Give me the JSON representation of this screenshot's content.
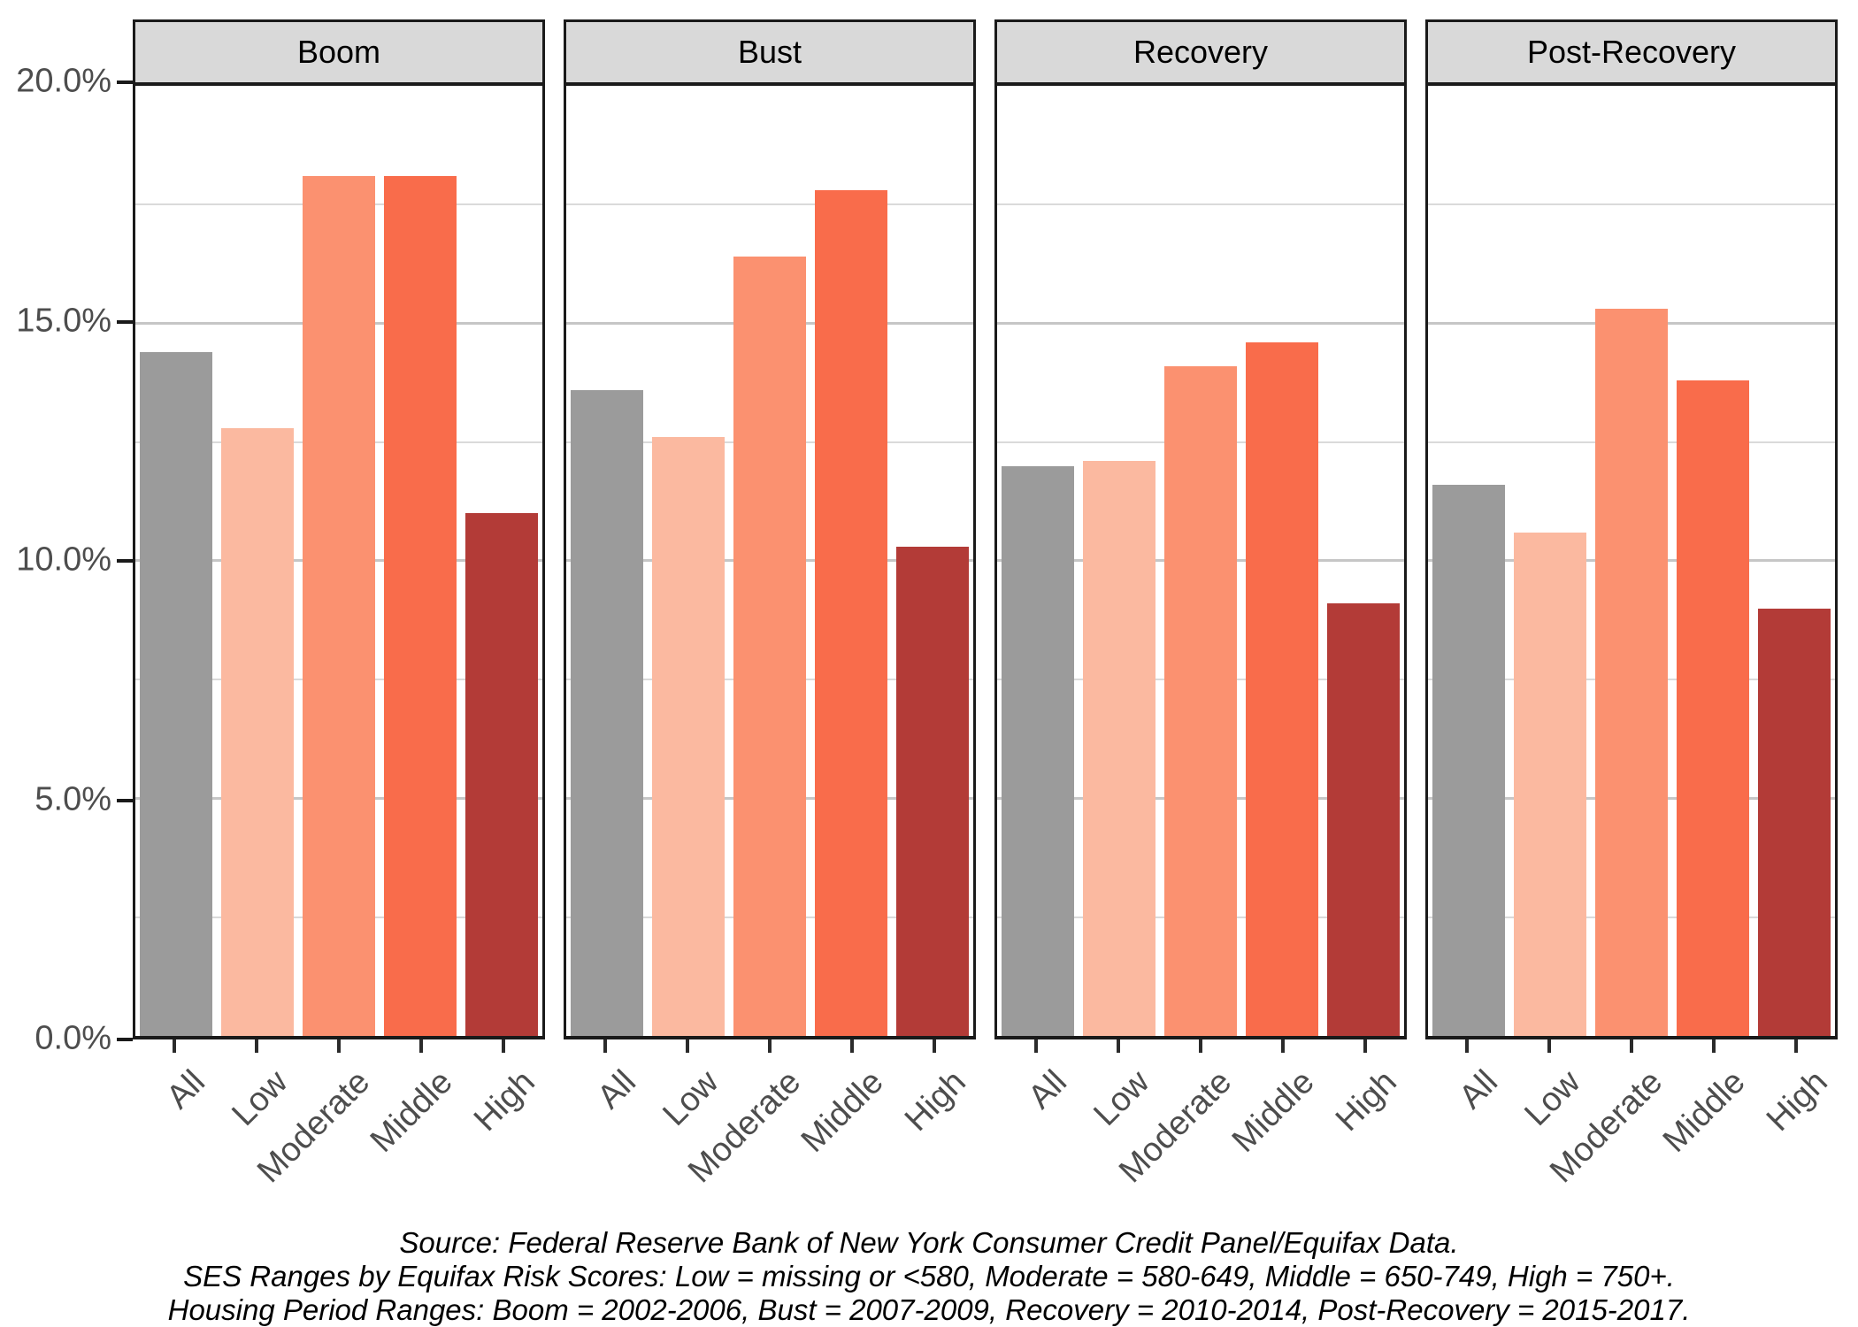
{
  "chart_data": {
    "type": "bar",
    "title": "",
    "facets": [
      "Boom",
      "Bust",
      "Recovery",
      "Post-Recovery"
    ],
    "categories": [
      "All",
      "Low",
      "Moderate",
      "Middle",
      "High"
    ],
    "series": [
      {
        "facet": "Boom",
        "values": [
          14.4,
          12.8,
          18.1,
          18.1,
          11.0
        ]
      },
      {
        "facet": "Bust",
        "values": [
          13.6,
          12.6,
          16.4,
          17.8,
          10.3
        ]
      },
      {
        "facet": "Recovery",
        "values": [
          12.0,
          12.1,
          14.1,
          14.6,
          9.1
        ]
      },
      {
        "facet": "Post-Recovery",
        "values": [
          11.6,
          10.6,
          15.3,
          13.8,
          9.0
        ]
      }
    ],
    "value_unit": "percent",
    "ylim": [
      0,
      20
    ],
    "y_major_ticks": [
      20,
      15,
      10,
      5,
      0
    ],
    "y_tick_labels": [
      "20.0%",
      "15.0%",
      "10.0%",
      "5.0%",
      "0.0%"
    ],
    "y_minor_gridlines": [
      17.5,
      12.5,
      7.5,
      2.5
    ],
    "bar_colors": {
      "All": "#9B9B9B",
      "Low": "#FBB9A0",
      "Moderate": "#FB9170",
      "Middle": "#F96C4B",
      "High": "#B33B37"
    },
    "grid": "horizontal major and minor gridlines",
    "legend_position": "none",
    "strip_background": "#D9D9D9"
  },
  "caption": {
    "lines": [
      "Source: Federal Reserve Bank of New York Consumer Credit Panel/Equifax Data.",
      "SES Ranges by Equifax Risk Scores: Low = missing or <580, Moderate = 580-649, Middle = 650-749, High = 750+.",
      "Housing Period Ranges: Boom = 2002-2006, Bust = 2007-2009, Recovery = 2010-2014, Post-Recovery = 2015-2017."
    ]
  }
}
